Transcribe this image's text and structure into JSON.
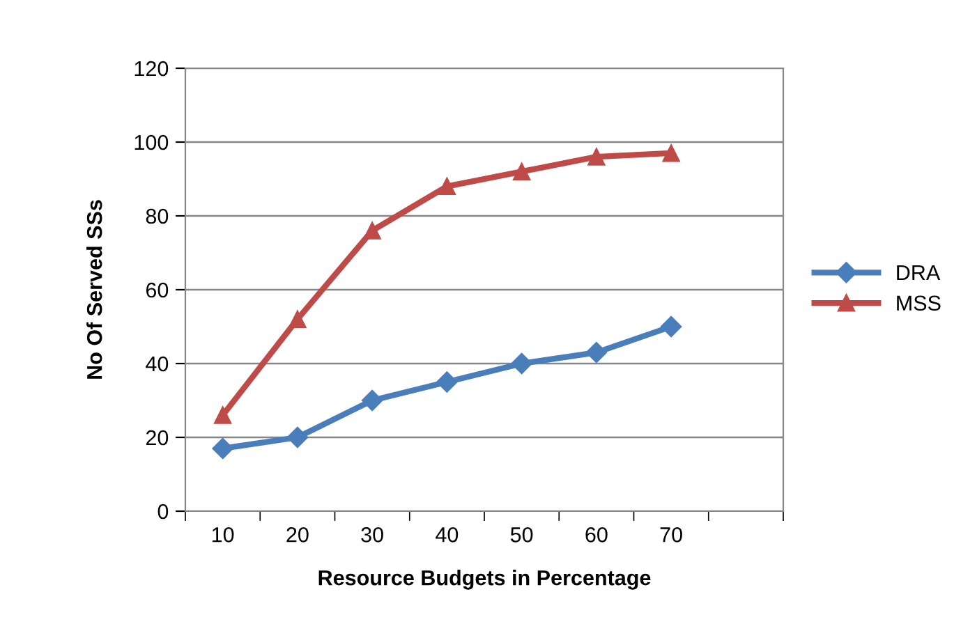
{
  "chart_data": {
    "type": "line",
    "xlabel": "Resource Budgets in Percentage",
    "ylabel": "No Of Served SSs",
    "categories": [
      "10",
      "20",
      "30",
      "40",
      "50",
      "60",
      "70",
      null
    ],
    "series": [
      {
        "name": "DRA",
        "color": "#4a7ebb",
        "marker": "diamond",
        "values": [
          17,
          20,
          30,
          35,
          40,
          43,
          50,
          null
        ]
      },
      {
        "name": "MSS",
        "color": "#be4b48",
        "marker": "triangle",
        "values": [
          26,
          52,
          76,
          88,
          92,
          96,
          97,
          null
        ]
      }
    ],
    "ylim": [
      0,
      120
    ],
    "yticks": [
      0,
      20,
      40,
      60,
      80,
      100,
      120
    ],
    "grid": "y",
    "legend": "right",
    "line_style": "solid"
  }
}
